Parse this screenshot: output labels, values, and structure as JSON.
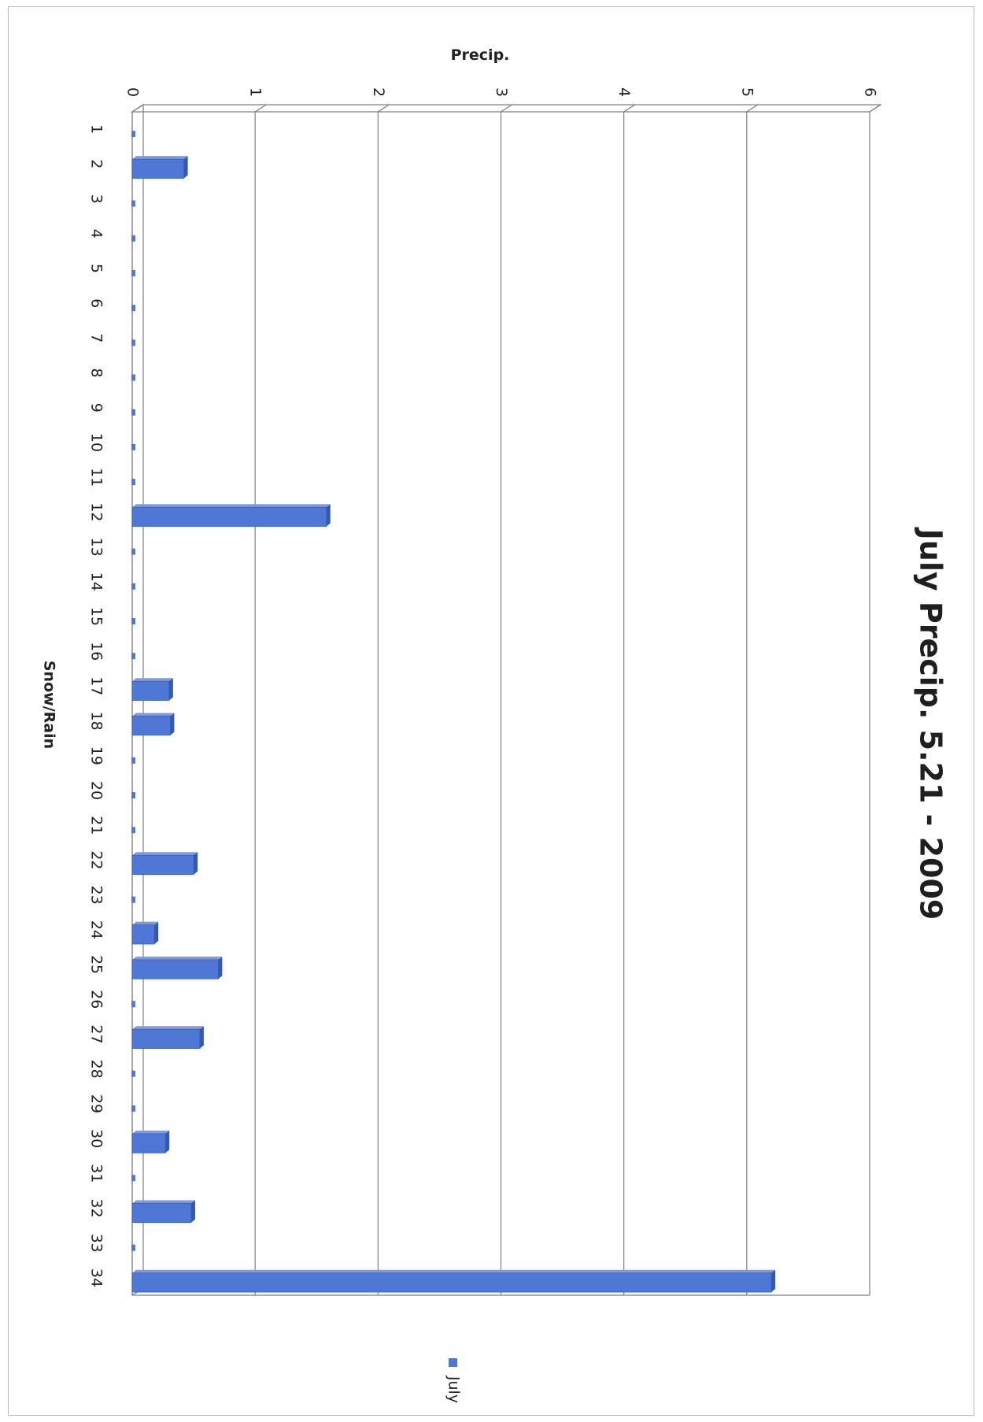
{
  "chart_data": {
    "type": "bar",
    "orientation": "vertical-bars-in-rotated-page",
    "title": "July Precip. 5.21 - 2009",
    "xlabel": "Snow/Rain",
    "ylabel": "Precip.",
    "ylim": [
      0,
      6
    ],
    "yticks": [
      "0",
      "1",
      "2",
      "3",
      "4",
      "5",
      "6"
    ],
    "categories": [
      "1",
      "2",
      "3",
      "4",
      "5",
      "6",
      "7",
      "8",
      "9",
      "10",
      "11",
      "12",
      "13",
      "14",
      "15",
      "16",
      "17",
      "18",
      "19",
      "20",
      "21",
      "22",
      "23",
      "24",
      "25",
      "26",
      "27",
      "28",
      "29",
      "30",
      "31",
      "32",
      "33",
      "34"
    ],
    "series": [
      {
        "name": "July",
        "color": "#4f78d6",
        "values": [
          0,
          0.42,
          0,
          0,
          0,
          0,
          0,
          0,
          0,
          0,
          0,
          1.58,
          0,
          0,
          0,
          0,
          0.3,
          0.31,
          0,
          0,
          0,
          0.5,
          0,
          0.18,
          0.7,
          0,
          0.55,
          0,
          0,
          0.27,
          0,
          0.48,
          0,
          5.2
        ]
      }
    ],
    "legend": {
      "position": "bottom",
      "entries": [
        "July"
      ]
    },
    "grid": true
  }
}
